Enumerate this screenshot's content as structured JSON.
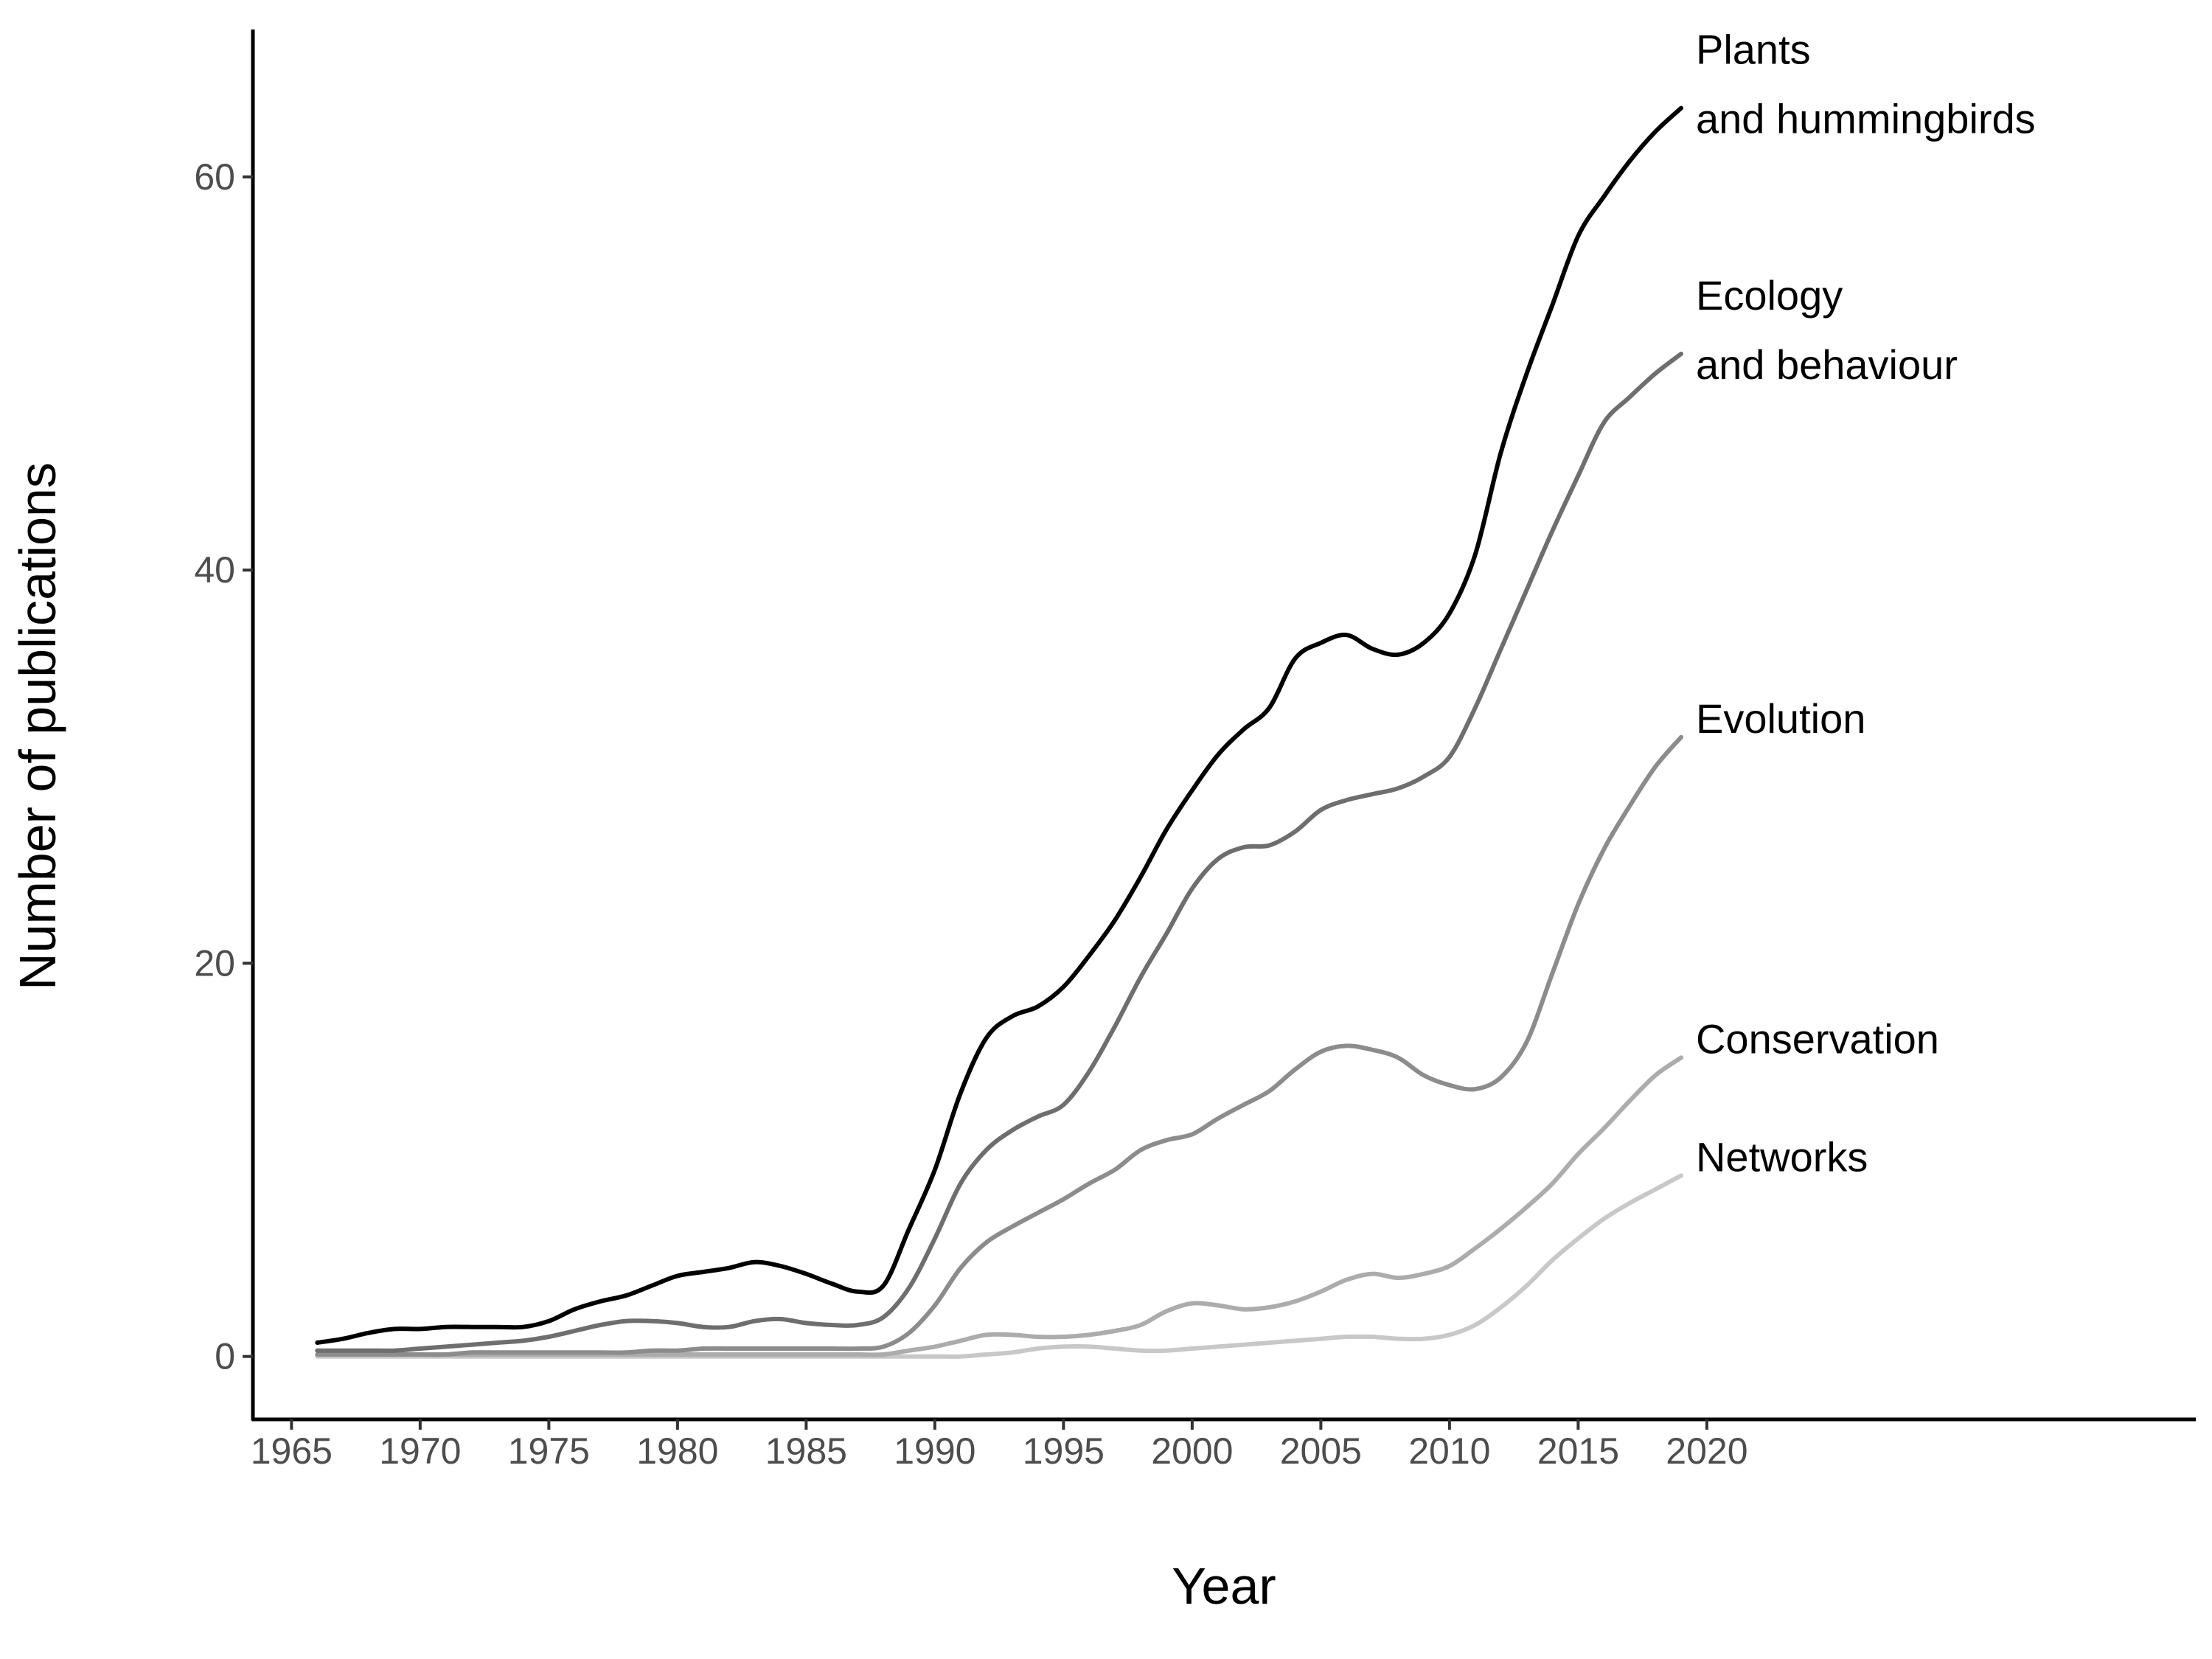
{
  "chart_data": {
    "type": "line",
    "title": "",
    "xlabel": "Year",
    "ylabel": "Number of publications",
    "xlim": [
      1963.5,
      2039
    ],
    "ylim": [
      -3.2,
      67.5
    ],
    "x_ticks": [
      1965,
      1970,
      1975,
      1980,
      1985,
      1990,
      1995,
      2000,
      2005,
      2010,
      2015,
      2020
    ],
    "y_ticks": [
      0,
      20,
      40,
      60
    ],
    "grid": false,
    "legend": "direct labels at line ends",
    "x": [
      1966,
      1967,
      1968,
      1969,
      1970,
      1971,
      1972,
      1973,
      1974,
      1975,
      1976,
      1977,
      1978,
      1979,
      1980,
      1981,
      1982,
      1983,
      1984,
      1985,
      1986,
      1987,
      1988,
      1989,
      1990,
      1991,
      1992,
      1993,
      1994,
      1995,
      1996,
      1997,
      1998,
      1999,
      2000,
      2001,
      2002,
      2003,
      2004,
      2005,
      2006,
      2007,
      2008,
      2009,
      2010,
      2011,
      2012,
      2013,
      2014,
      2015,
      2016,
      2017,
      2018,
      2019
    ],
    "series": [
      {
        "name": "Plants and hummingbirds",
        "label_lines": [
          "Plants",
          "and hummingbirds"
        ],
        "color": "#000000",
        "values": [
          0.7,
          0.9,
          1.2,
          1.4,
          1.4,
          1.5,
          1.5,
          1.5,
          1.5,
          1.8,
          2.4,
          2.8,
          3.1,
          3.6,
          4.1,
          4.3,
          4.5,
          4.8,
          4.6,
          4.2,
          3.7,
          3.3,
          3.6,
          6.5,
          9.5,
          13.4,
          16.2,
          17.3,
          17.8,
          18.8,
          20.4,
          22.2,
          24.4,
          26.8,
          28.8,
          30.6,
          31.9,
          33.0,
          35.5,
          36.3,
          36.7,
          36.0,
          35.7,
          36.3,
          37.8,
          40.8,
          46.0,
          50.0,
          53.5,
          57.0,
          59.0,
          60.8,
          62.3,
          63.5
        ]
      },
      {
        "name": "Ecology and behaviour",
        "label_lines": [
          "Ecology",
          "and behaviour"
        ],
        "color": "#6e6e6e",
        "values": [
          0.3,
          0.3,
          0.3,
          0.3,
          0.4,
          0.5,
          0.6,
          0.7,
          0.8,
          1.0,
          1.3,
          1.6,
          1.8,
          1.8,
          1.7,
          1.5,
          1.5,
          1.8,
          1.9,
          1.7,
          1.6,
          1.6,
          2.0,
          3.5,
          6.0,
          8.8,
          10.5,
          11.5,
          12.2,
          12.8,
          14.5,
          16.8,
          19.3,
          21.5,
          23.8,
          25.3,
          25.9,
          26.0,
          26.7,
          27.8,
          28.3,
          28.6,
          28.9,
          29.5,
          30.5,
          33.0,
          36.0,
          39.0,
          42.0,
          44.8,
          47.5,
          48.8,
          50.0,
          51.0
        ]
      },
      {
        "name": "Evolution",
        "label_lines": [
          "Evolution"
        ],
        "color": "#8c8c8c",
        "values": [
          0.1,
          0.1,
          0.1,
          0.1,
          0.1,
          0.1,
          0.2,
          0.2,
          0.2,
          0.2,
          0.2,
          0.2,
          0.2,
          0.3,
          0.3,
          0.4,
          0.4,
          0.4,
          0.4,
          0.4,
          0.4,
          0.4,
          0.5,
          1.2,
          2.6,
          4.5,
          5.8,
          6.6,
          7.3,
          8.0,
          8.8,
          9.5,
          10.5,
          11.0,
          11.3,
          12.1,
          12.8,
          13.5,
          14.6,
          15.5,
          15.8,
          15.6,
          15.2,
          14.3,
          13.8,
          13.6,
          14.2,
          16.0,
          19.5,
          23.0,
          25.8,
          28.0,
          30.0,
          31.5
        ]
      },
      {
        "name": "Conservation",
        "label_lines": [
          "Conservation"
        ],
        "color": "#acacac",
        "values": [
          0.1,
          0.1,
          0.1,
          0.1,
          0.1,
          0.1,
          0.1,
          0.1,
          0.1,
          0.1,
          0.1,
          0.1,
          0.1,
          0.1,
          0.1,
          0.1,
          0.1,
          0.1,
          0.1,
          0.1,
          0.1,
          0.1,
          0.1,
          0.3,
          0.5,
          0.8,
          1.1,
          1.1,
          1.0,
          1.0,
          1.1,
          1.3,
          1.6,
          2.3,
          2.7,
          2.6,
          2.4,
          2.5,
          2.8,
          3.3,
          3.9,
          4.2,
          4.0,
          4.2,
          4.6,
          5.5,
          6.5,
          7.6,
          8.8,
          10.3,
          11.6,
          13.0,
          14.3,
          15.2
        ]
      },
      {
        "name": "Networks",
        "label_lines": [
          "Networks"
        ],
        "color": "#c8c8c8",
        "values": [
          0.0,
          0.0,
          0.0,
          0.0,
          0.0,
          0.0,
          0.0,
          0.0,
          0.0,
          0.0,
          0.0,
          0.0,
          0.0,
          0.0,
          0.0,
          0.0,
          0.0,
          0.0,
          0.0,
          0.0,
          0.0,
          0.0,
          0.0,
          0.0,
          0.0,
          0.0,
          0.1,
          0.2,
          0.4,
          0.5,
          0.5,
          0.4,
          0.3,
          0.3,
          0.4,
          0.5,
          0.6,
          0.7,
          0.8,
          0.9,
          1.0,
          1.0,
          0.9,
          0.9,
          1.1,
          1.6,
          2.5,
          3.6,
          4.9,
          6.0,
          7.0,
          7.8,
          8.5,
          9.2
        ]
      }
    ]
  }
}
